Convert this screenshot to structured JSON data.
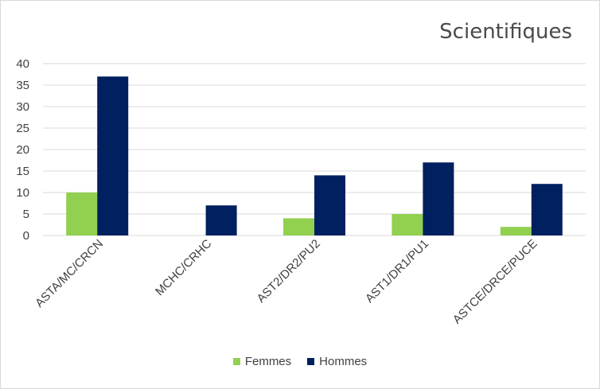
{
  "chart_data": {
    "type": "bar",
    "title": "Scientifiques",
    "categories": [
      "ASTA/MC/CRCN",
      "MCHC/CRHC",
      "AST2/DR2/PU2",
      "AST1/DR1/PU1",
      "ASTCE/DRCE/PUCE"
    ],
    "series": [
      {
        "name": "Femmes",
        "values": [
          10,
          0,
          4,
          5,
          2
        ],
        "color": "#92d050"
      },
      {
        "name": "Hommes",
        "values": [
          37,
          7,
          14,
          17,
          12
        ],
        "color": "#002060"
      }
    ],
    "y_ticks": [
      "0",
      "5",
      "10",
      "15",
      "20",
      "25",
      "30",
      "35",
      "40"
    ],
    "ylim": [
      0,
      40
    ],
    "grid": true,
    "legend_position": "bottom"
  }
}
